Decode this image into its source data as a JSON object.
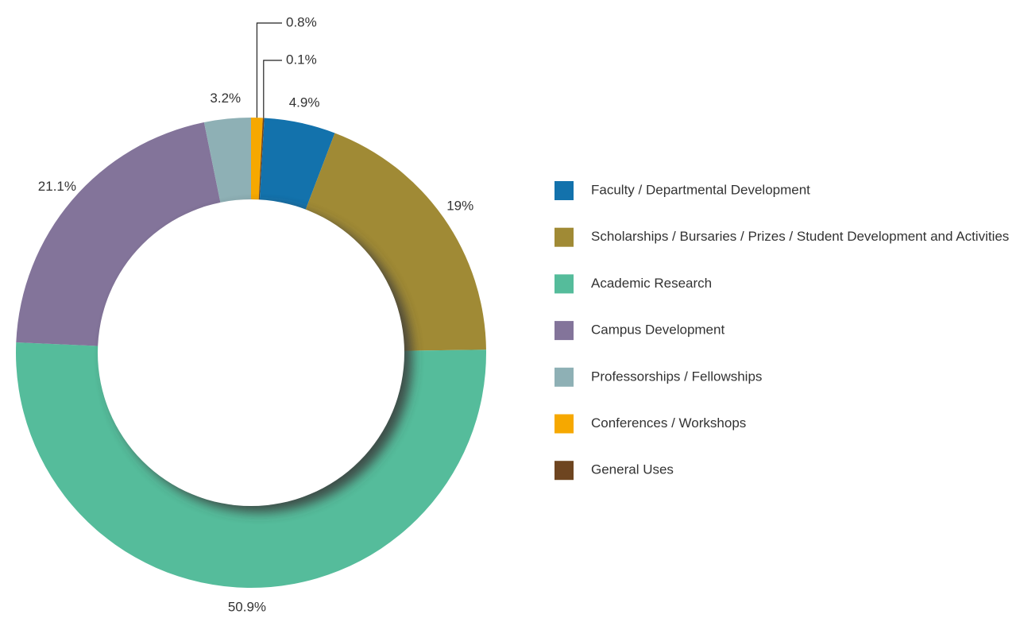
{
  "chart_data": {
    "type": "donut",
    "categories": [
      "Faculty / Departmental Development",
      "Scholarships / Bursaries / Prizes / Student Development and Activities",
      "Academic Research",
      "Campus Development",
      "Professorships / Fellowships",
      "Conferences / Workshops",
      "General Uses"
    ],
    "values": [
      4.9,
      19,
      50.9,
      21.1,
      3.2,
      0.8,
      0.1
    ],
    "value_labels": [
      "4.9%",
      "19%",
      "50.9%",
      "21.1%",
      "3.2%",
      "0.8%",
      "0.1%"
    ],
    "colors": [
      "#1372ac",
      "#a08a35",
      "#55bc9b",
      "#83749a",
      "#8eb0b5",
      "#f6a800",
      "#6e4520"
    ],
    "legend": "right"
  }
}
